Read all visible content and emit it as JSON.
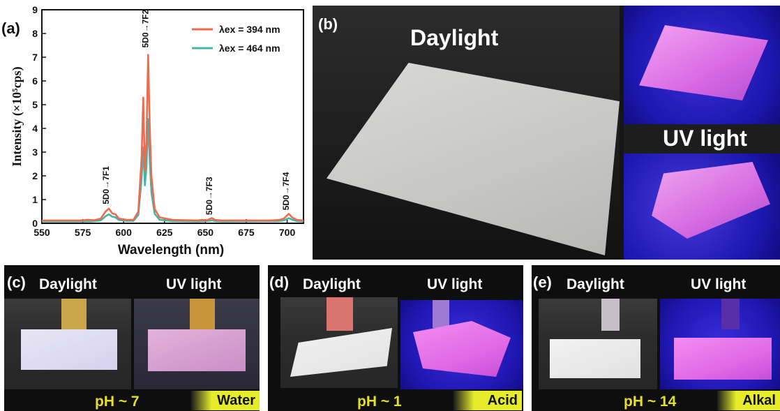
{
  "chart_data": {
    "type": "line",
    "panel_label": "(a)",
    "xlabel": "Wavelength (nm)",
    "ylabel": "Intensity (×10⁵cps)",
    "xlim": [
      550,
      710
    ],
    "ylim": [
      0,
      9
    ],
    "xticks": [
      550,
      575,
      600,
      625,
      650,
      675,
      700
    ],
    "yticks": [
      0,
      1,
      2,
      3,
      4,
      5,
      6,
      7,
      8,
      9
    ],
    "legend_position": "top-right",
    "series": [
      {
        "name": "λex = 394 nm",
        "color": "#f06a4e",
        "points": [
          [
            550,
            0.12
          ],
          [
            575,
            0.12
          ],
          [
            578,
            0.15
          ],
          [
            582,
            0.13
          ],
          [
            586,
            0.2
          ],
          [
            589,
            0.5
          ],
          [
            591,
            0.62
          ],
          [
            593,
            0.42
          ],
          [
            595,
            0.38
          ],
          [
            597,
            0.2
          ],
          [
            602,
            0.14
          ],
          [
            606,
            0.15
          ],
          [
            609,
            0.5
          ],
          [
            611,
            2.8
          ],
          [
            612,
            5.3
          ],
          [
            613,
            2.2
          ],
          [
            614,
            3.5
          ],
          [
            615,
            7.1
          ],
          [
            616,
            4.0
          ],
          [
            617,
            2.0
          ],
          [
            619,
            0.6
          ],
          [
            622,
            0.25
          ],
          [
            630,
            0.14
          ],
          [
            645,
            0.12
          ],
          [
            648,
            0.14
          ],
          [
            651,
            0.13
          ],
          [
            654,
            0.22
          ],
          [
            656,
            0.14
          ],
          [
            660,
            0.12
          ],
          [
            690,
            0.12
          ],
          [
            695,
            0.14
          ],
          [
            698,
            0.2
          ],
          [
            701,
            0.4
          ],
          [
            703,
            0.25
          ],
          [
            706,
            0.14
          ],
          [
            710,
            0.12
          ]
        ]
      },
      {
        "name": "λex = 464 nm",
        "color": "#46b4a8",
        "points": [
          [
            550,
            0.08
          ],
          [
            575,
            0.08
          ],
          [
            580,
            0.08
          ],
          [
            586,
            0.12
          ],
          [
            589,
            0.3
          ],
          [
            591,
            0.38
          ],
          [
            593,
            0.28
          ],
          [
            595,
            0.25
          ],
          [
            597,
            0.14
          ],
          [
            602,
            0.1
          ],
          [
            606,
            0.1
          ],
          [
            609,
            0.35
          ],
          [
            611,
            1.9
          ],
          [
            612,
            3.2
          ],
          [
            613,
            1.6
          ],
          [
            614,
            2.4
          ],
          [
            615,
            4.4
          ],
          [
            616,
            2.6
          ],
          [
            617,
            1.3
          ],
          [
            619,
            0.4
          ],
          [
            622,
            0.15
          ],
          [
            630,
            0.09
          ],
          [
            645,
            0.08
          ],
          [
            650,
            0.09
          ],
          [
            654,
            0.12
          ],
          [
            656,
            0.09
          ],
          [
            660,
            0.08
          ],
          [
            695,
            0.09
          ],
          [
            698,
            0.12
          ],
          [
            701,
            0.22
          ],
          [
            703,
            0.15
          ],
          [
            706,
            0.09
          ],
          [
            710,
            0.08
          ]
        ]
      }
    ],
    "annotations": [
      {
        "text": "5D0→7F1",
        "x": 591,
        "y": 0.8
      },
      {
        "text": "5D0→7F2",
        "x": 615,
        "y": 7.4
      },
      {
        "text": "5D0→7F3",
        "x": 654,
        "y": 0.35
      },
      {
        "text": "5D0→7F4",
        "x": 701,
        "y": 0.55
      }
    ]
  },
  "panel_b": {
    "letter": "(b)",
    "daylight": "Daylight",
    "uv": "UV light"
  },
  "panel_c": {
    "letter": "(c)",
    "daylight": "Daylight",
    "uv": "UV light",
    "ph": "pH ~ 7",
    "tag": "Water"
  },
  "panel_d": {
    "letter": "(d)",
    "daylight": "Daylight",
    "uv": "UV light",
    "ph": "pH ~ 1",
    "tag": "Acid"
  },
  "panel_e": {
    "letter": "(e)",
    "daylight": "Daylight",
    "uv": "UV light",
    "ph": "pH ~ 14",
    "tag": "Alkal"
  },
  "colors": {
    "accent_yellow": "#e5e023",
    "uv_blue": "#1f17b2",
    "uv_pink": "#e06ae6"
  }
}
